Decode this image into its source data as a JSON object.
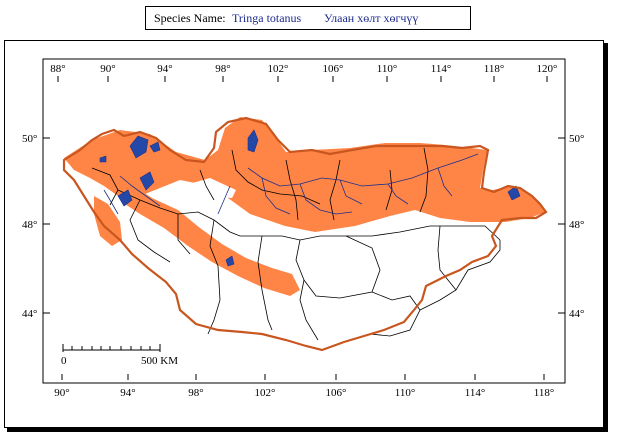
{
  "header": {
    "species_label": "Species Name:",
    "scientific_name": "Tringa totanus",
    "local_name": "Улаан хөлт хөгчүү"
  },
  "map": {
    "top_longitude_labels": [
      "88°",
      "90°",
      "94°",
      "98°",
      "102°",
      "106°",
      "110°",
      "114°",
      "118°",
      "120°"
    ],
    "bottom_longitude_labels": [
      "90°",
      "94°",
      "98°",
      "102°",
      "106°",
      "110°",
      "114°",
      "118°"
    ],
    "left_latitude_labels": [
      "50°",
      "48°",
      "44°"
    ],
    "right_latitude_labels": [
      "50°",
      "48°",
      "44°"
    ],
    "scale_bar": {
      "start_label": "0",
      "end_label": "500 KM"
    },
    "colors": {
      "range": "#ff8547",
      "border": "#c8561e",
      "water": "#2448a8",
      "lines": "#000000"
    }
  }
}
